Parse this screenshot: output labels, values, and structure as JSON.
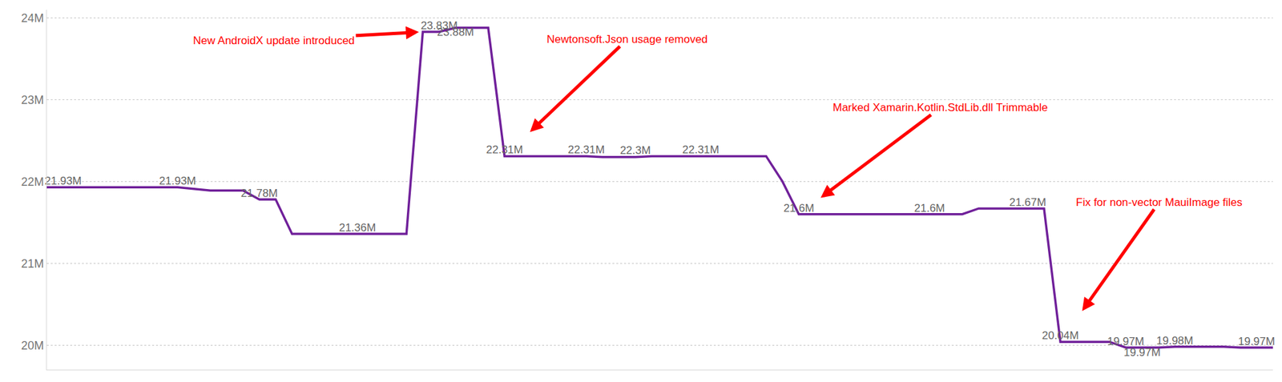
{
  "chart_data": {
    "type": "line",
    "color": "#70209a",
    "data_labels": true,
    "grid": true,
    "tick_labels": "y",
    "categories": [
      null,
      null,
      null,
      null,
      null,
      null,
      null,
      null,
      null,
      null,
      null,
      null,
      null,
      null,
      null,
      null,
      null,
      null,
      null,
      null,
      null,
      null,
      null,
      null,
      null,
      null,
      null,
      null,
      null,
      null,
      null,
      null,
      null,
      null,
      null,
      null,
      null,
      null,
      null,
      null,
      null,
      null,
      null,
      null,
      null,
      null,
      null,
      null,
      null,
      null,
      null,
      null,
      null,
      null,
      null,
      null,
      null,
      null,
      null,
      null,
      null,
      null,
      null,
      null,
      null,
      null,
      null,
      null,
      null,
      null,
      null,
      null,
      null,
      null,
      null,
      null
    ],
    "values": [
      21930000,
      21930000,
      21930000,
      21930000,
      21930000,
      21930000,
      21930000,
      21930000,
      21930000,
      21910000,
      21890000,
      21890000,
      21890000,
      21780000,
      21780000,
      21360000,
      21360000,
      21360000,
      21360000,
      21360000,
      21360000,
      21360000,
      21360000,
      23830000,
      23830000,
      23880000,
      23880000,
      23880000,
      22310000,
      22310000,
      22310000,
      22310000,
      22310000,
      22310000,
      22300000,
      22300000,
      22300000,
      22310000,
      22310000,
      22310000,
      22310000,
      22310000,
      22310000,
      22310000,
      22310000,
      22000000,
      21600000,
      21600000,
      21600000,
      21600000,
      21600000,
      21600000,
      21600000,
      21600000,
      21600000,
      21600000,
      21600000,
      21670000,
      21670000,
      21670000,
      21670000,
      21670000,
      20040000,
      20040000,
      20040000,
      20040000,
      19970000,
      19970000,
      19970000,
      19980000,
      19980000,
      19980000,
      19980000,
      19970000,
      19970000,
      19970000
    ],
    "value_labels": [
      null,
      "21.93M",
      null,
      null,
      null,
      null,
      null,
      null,
      "21.93M",
      null,
      null,
      null,
      null,
      "21.78M",
      null,
      null,
      null,
      null,
      null,
      "21.36M",
      null,
      null,
      null,
      null,
      "23.83M",
      "23.88M",
      null,
      null,
      "22.31M",
      null,
      null,
      null,
      null,
      "22.31M",
      null,
      null,
      "22.3M",
      null,
      null,
      null,
      "22.31M",
      null,
      null,
      null,
      null,
      null,
      "21.6M",
      null,
      null,
      null,
      null,
      null,
      null,
      null,
      "21.6M",
      null,
      null,
      null,
      null,
      null,
      "21.67M",
      null,
      "20.04M",
      null,
      null,
      null,
      "19.97M",
      "19.97M",
      null,
      "19.98M",
      null,
      null,
      null,
      null,
      "19.97M",
      null
    ],
    "ylim": [
      19700000,
      24100000
    ],
    "yticks": [
      {
        "value": 20000000,
        "label": "20M"
      },
      {
        "value": 21000000,
        "label": "21M"
      },
      {
        "value": 22000000,
        "label": "22M"
      },
      {
        "value": 23000000,
        "label": "23M"
      },
      {
        "value": 24000000,
        "label": "24M"
      }
    ],
    "annotations": [
      {
        "text": "New AndroidX update introduced",
        "x": 23,
        "y": 23830000
      },
      {
        "text": "Newtonsoft.Json usage removed",
        "x": 28,
        "y": 22310000
      },
      {
        "text": "Marked Xamarin.Kotlin.StdLib.dll Trimmable",
        "x": 46,
        "y": 21600000
      },
      {
        "text": "Fix for non-vector MauiImage files",
        "x": 62,
        "y": 20040000
      }
    ]
  }
}
